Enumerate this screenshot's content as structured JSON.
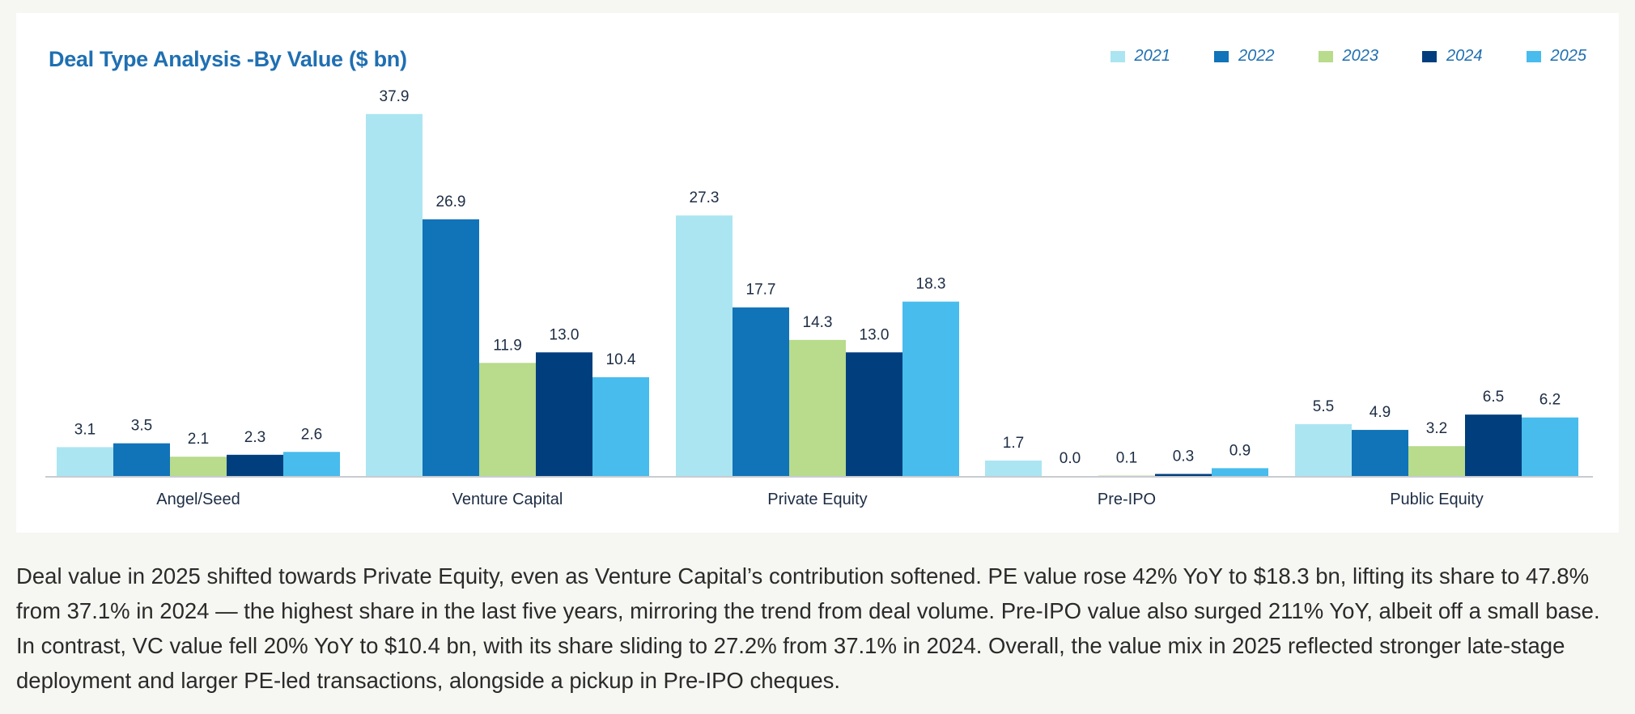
{
  "chart_data": {
    "type": "bar",
    "title": "Deal Type Analysis -By Value ($ bn)",
    "categories": [
      "Angel/Seed",
      "Venture Capital",
      "Private Equity",
      "Pre-IPO",
      "Public Equity"
    ],
    "series": [
      {
        "name": "2021",
        "color": "#abe5f2",
        "values": [
          3.1,
          37.9,
          27.3,
          1.7,
          5.5
        ],
        "labels": [
          "3.1",
          "37.9",
          "27.3",
          "1.7",
          "5.5"
        ]
      },
      {
        "name": "2022",
        "color": "#1173b8",
        "values": [
          3.5,
          26.9,
          17.7,
          0.0,
          4.9
        ],
        "labels": [
          "3.5",
          "26.9",
          "17.7",
          "0.0",
          "4.9"
        ]
      },
      {
        "name": "2023",
        "color": "#b8db8c",
        "values": [
          2.1,
          11.9,
          14.3,
          0.1,
          3.2
        ],
        "labels": [
          "2.1",
          "11.9",
          "14.3",
          "0.1",
          "3.2"
        ]
      },
      {
        "name": "2024",
        "color": "#003e7e",
        "values": [
          2.3,
          13.0,
          13.0,
          0.3,
          6.5
        ],
        "labels": [
          "2.3",
          "13.0",
          "13.0",
          "0.3",
          "6.5"
        ]
      },
      {
        "name": "2025",
        "color": "#47bced",
        "values": [
          2.6,
          10.4,
          18.3,
          0.9,
          6.2
        ],
        "labels": [
          "2.6",
          "10.4",
          "18.3",
          "0.9",
          "6.2"
        ]
      }
    ],
    "ylim": [
      0,
      40
    ],
    "xlabel": "",
    "ylabel": "",
    "legend_position": "top-right",
    "grid": false
  },
  "summary": "Deal value in 2025 shifted towards Private Equity, even as Venture Capital’s contribution softened. PE value rose 42% YoY to $18.3 bn, lifting its share to 47.8% from 37.1% in 2024 — the highest share in the last five years, mirroring the trend from deal volume. Pre-IPO value also surged 211% YoY, albeit off a small base. In contrast, VC value fell 20% YoY to $10.4 bn, with its share sliding to 27.2% from 37.1% in 2024. Overall, the value mix in 2025 reflected stronger late-stage deployment and larger PE-led transactions, alongside a pickup in Pre-IPO cheques.",
  "colors": {
    "title": "#1f6fb2",
    "axis": "#c8ccd2",
    "label_text": "#1d2d44"
  }
}
